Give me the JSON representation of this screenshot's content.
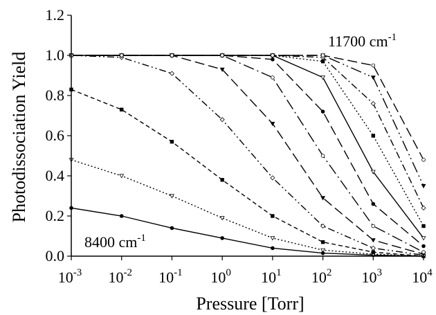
{
  "chart_data": {
    "type": "line",
    "xlabel": "Pressure [Torr]",
    "ylabel": "Photodissociation Yield",
    "x_scale": "log",
    "x_ticks": [
      0.001,
      0.01,
      0.1,
      1,
      10,
      100,
      1000,
      10000
    ],
    "x_tick_labels": [
      {
        "base": "10",
        "exp": "-3"
      },
      {
        "base": "10",
        "exp": "-2"
      },
      {
        "base": "10",
        "exp": "-1"
      },
      {
        "base": "10",
        "exp": "0"
      },
      {
        "base": "10",
        "exp": "1"
      },
      {
        "base": "10",
        "exp": "2"
      },
      {
        "base": "10",
        "exp": "3"
      },
      {
        "base": "10",
        "exp": "4"
      }
    ],
    "xlim": [
      0.001,
      10000
    ],
    "ylim": [
      0,
      1.2
    ],
    "y_ticks": [
      0.0,
      0.2,
      0.4,
      0.6,
      0.8,
      1.0,
      1.2
    ],
    "y_tick_labels": [
      "0.0",
      "0.2",
      "0.4",
      "0.6",
      "0.8",
      "1.0",
      "1.2"
    ],
    "grid": false,
    "annotations": [
      {
        "id": "label-8400",
        "text": "8400 cm",
        "sup": "-1"
      },
      {
        "id": "label-11700",
        "text": "11700 cm",
        "sup": "-1"
      }
    ],
    "series": [
      {
        "x": [
          0.001,
          0.01,
          0.1,
          1,
          10,
          100,
          1000,
          10000
        ],
        "y": [
          0.24,
          0.2,
          0.14,
          0.09,
          0.04,
          0.015,
          0.005,
          0.0
        ],
        "dash": "solid",
        "marker": "circle-filled"
      },
      {
        "x": [
          0.001,
          0.01,
          0.1,
          1,
          10,
          100,
          1000,
          10000
        ],
        "y": [
          0.48,
          0.4,
          0.3,
          0.19,
          0.09,
          0.03,
          0.01,
          0.0
        ],
        "dash": "dotted",
        "marker": "triangle-open"
      },
      {
        "x": [
          0.001,
          0.01,
          0.1,
          1,
          10,
          100,
          1000,
          10000
        ],
        "y": [
          0.83,
          0.73,
          0.57,
          0.38,
          0.2,
          0.07,
          0.02,
          0.0
        ],
        "dash": "dashed",
        "marker": "square-filled"
      },
      {
        "x": [
          0.001,
          0.01,
          0.1,
          1,
          10,
          100,
          1000,
          10000
        ],
        "y": [
          1.0,
          0.99,
          0.91,
          0.68,
          0.39,
          0.15,
          0.04,
          0.005
        ],
        "dash": "dashdotdot",
        "marker": "diamond-open"
      },
      {
        "x": [
          0.001,
          0.01,
          0.1,
          1,
          10,
          100,
          1000,
          10000
        ],
        "y": [
          1.0,
          1.0,
          1.0,
          0.93,
          0.66,
          0.29,
          0.08,
          0.01
        ],
        "dash": "longdash",
        "marker": "triangle-filled"
      },
      {
        "x": [
          0.001,
          0.01,
          0.1,
          1,
          10,
          100,
          1000,
          10000
        ],
        "y": [
          1.0,
          1.0,
          1.0,
          1.0,
          0.89,
          0.5,
          0.15,
          0.02
        ],
        "dash": "longdashdot",
        "marker": "circle-open"
      },
      {
        "x": [
          0.001,
          0.01,
          0.1,
          1,
          10,
          100,
          1000,
          10000
        ],
        "y": [
          1.0,
          1.0,
          1.0,
          1.0,
          0.98,
          0.72,
          0.26,
          0.05
        ],
        "dash": "longdash",
        "marker": "circle-filled"
      },
      {
        "x": [
          0.001,
          0.01,
          0.1,
          1,
          10,
          100,
          1000,
          10000
        ],
        "y": [
          1.0,
          1.0,
          1.0,
          1.0,
          1.0,
          0.89,
          0.42,
          0.09
        ],
        "dash": "solid",
        "marker": "triangle-open"
      },
      {
        "x": [
          0.001,
          0.01,
          0.1,
          1,
          10,
          100,
          1000,
          10000
        ],
        "y": [
          1.0,
          1.0,
          1.0,
          1.0,
          1.0,
          0.97,
          0.6,
          0.15
        ],
        "dash": "dotted",
        "marker": "square-filled"
      },
      {
        "x": [
          0.001,
          0.01,
          0.1,
          1,
          10,
          100,
          1000,
          10000
        ],
        "y": [
          1.0,
          1.0,
          1.0,
          1.0,
          1.0,
          0.99,
          0.76,
          0.24
        ],
        "dash": "dashdot",
        "marker": "diamond-open"
      },
      {
        "x": [
          0.001,
          0.01,
          0.1,
          1,
          10,
          100,
          1000,
          10000
        ],
        "y": [
          1.0,
          1.0,
          1.0,
          1.0,
          1.0,
          1.0,
          0.89,
          0.35
        ],
        "dash": "longdashdotdot",
        "marker": "triangle-filled"
      },
      {
        "x": [
          0.001,
          0.01,
          0.1,
          1,
          10,
          100,
          1000,
          10000
        ],
        "y": [
          1.0,
          1.0,
          1.0,
          1.0,
          1.0,
          1.0,
          0.95,
          0.48
        ],
        "dash": "longdash",
        "marker": "circle-open"
      }
    ]
  }
}
